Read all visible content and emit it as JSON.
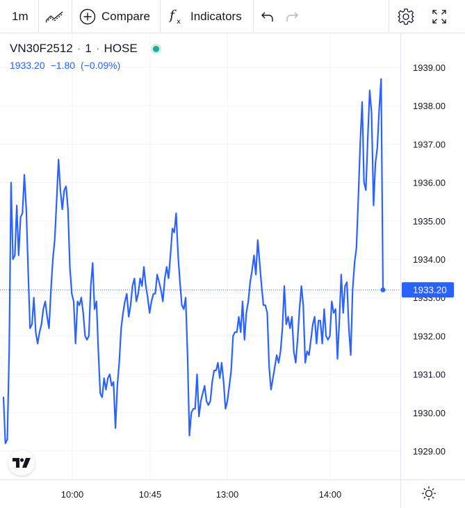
{
  "toolbar": {
    "interval": "1m",
    "compare_label": "Compare",
    "indicators_label": "Indicators"
  },
  "legend": {
    "symbol": "VN30F2512",
    "interval": "1",
    "exchange": "HOSE",
    "last": "1933.20",
    "change": "−1.80",
    "change_pct": "(−0.09%)"
  },
  "price_label": "1933.20",
  "colors": {
    "line": "#2962ff",
    "grid": "#f0f3fa",
    "text": "#131722",
    "axis_text": "#131722",
    "live_dot": "#22ab94"
  },
  "icons": [
    "line-chart-icon",
    "plus-circle-icon",
    "fx-icon",
    "undo-icon",
    "redo-icon",
    "gear-icon",
    "fullscreen-icon",
    "tradingview-logo",
    "settings-icon"
  ],
  "chart_data": {
    "type": "line",
    "symbol": "VN30F2512",
    "y_ticks": [
      "1939.00",
      "1938.00",
      "1937.00",
      "1936.00",
      "1935.00",
      "1934.00",
      "1933.00",
      "1932.00",
      "1931.00",
      "1930.00",
      "1929.00"
    ],
    "x_ticks": [
      "10:00",
      "10:45",
      "13:00",
      "14:00"
    ],
    "ylim": [
      1928.3,
      1940.1
    ],
    "last_value": 1933.2,
    "grid": true,
    "y_axis_position": "right",
    "values": [
      1930.4,
      1929.2,
      1929.3,
      1931.6,
      1936.0,
      1934.0,
      1934.1,
      1935.4,
      1934.1,
      1935.1,
      1935.2,
      1936.2,
      1935.3,
      1933.7,
      1932.2,
      1932.3,
      1933.0,
      1932.1,
      1931.8,
      1932.1,
      1932.3,
      1932.7,
      1932.9,
      1932.5,
      1932.2,
      1933.2,
      1934.0,
      1934.5,
      1935.5,
      1936.6,
      1935.8,
      1935.3,
      1935.8,
      1935.9,
      1935.3,
      1933.8,
      1933.1,
      1932.9,
      1931.8,
      1932.9,
      1932.8,
      1933.0,
      1932.6,
      1932.0,
      1931.9,
      1932.0,
      1933.3,
      1933.9,
      1932.7,
      1932.9,
      1931.6,
      1930.5,
      1930.4,
      1930.9,
      1930.6,
      1930.9,
      1931.0,
      1930.7,
      1930.8,
      1929.6,
      1930.7,
      1931.3,
      1932.2,
      1932.6,
      1932.9,
      1933.1,
      1932.5,
      1932.8,
      1933.3,
      1933.5,
      1932.9,
      1933.1,
      1933.5,
      1933.3,
      1933.8,
      1933.3,
      1933.0,
      1932.6,
      1932.9,
      1933.1,
      1933.1,
      1933.6,
      1933.4,
      1933.2,
      1932.9,
      1933.5,
      1933.8,
      1933.5,
      1934.1,
      1934.8,
      1934.7,
      1935.2,
      1934.1,
      1933.4,
      1932.8,
      1932.7,
      1933.0,
      1931.5,
      1929.4,
      1930.0,
      1930.1,
      1930.1,
      1931.0,
      1929.9,
      1930.3,
      1930.5,
      1930.7,
      1930.3,
      1930.2,
      1930.3,
      1930.8,
      1931.1,
      1931.1,
      1931.3,
      1930.9,
      1931.3,
      1930.8,
      1930.1,
      1930.3,
      1930.7,
      1931.1,
      1932.0,
      1932.1,
      1932.1,
      1932.5,
      1932.1,
      1932.9,
      1931.9,
      1932.6,
      1932.9,
      1933.4,
      1933.7,
      1934.1,
      1933.6,
      1934.5,
      1933.9,
      1933.3,
      1932.8,
      1932.8,
      1932.6,
      1931.2,
      1930.6,
      1930.9,
      1931.2,
      1931.5,
      1931.3,
      1931.6,
      1932.2,
      1933.3,
      1932.3,
      1932.5,
      1932.2,
      1932.5,
      1931.6,
      1931.3,
      1931.9,
      1932.7,
      1933.3,
      1932.8,
      1931.3,
      1931.6,
      1931.5,
      1931.9,
      1932.3,
      1932.5,
      1931.8,
      1932.4,
      1932.4,
      1931.8,
      1932.7,
      1932.0,
      1931.9,
      1932.0,
      1932.9,
      1932.6,
      1932.7,
      1931.4,
      1932.4,
      1933.6,
      1932.6,
      1933.3,
      1933.4,
      1932.2,
      1931.5,
      1933.2,
      1933.9,
      1934.3,
      1935.6,
      1937.0,
      1938.1,
      1936.0,
      1935.8,
      1937.2,
      1938.4,
      1937.8,
      1935.4,
      1936.5,
      1936.9,
      1937.9,
      1938.7,
      1933.2
    ]
  }
}
